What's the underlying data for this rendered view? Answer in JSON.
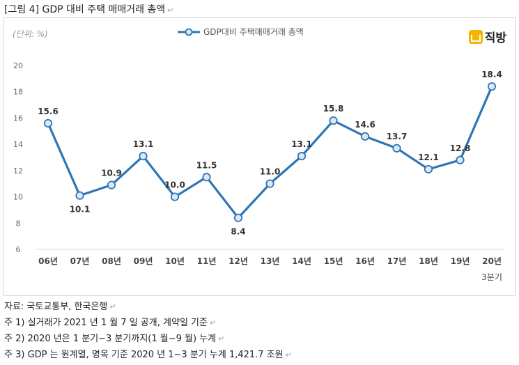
{
  "figure_title": "[그림 4] GDP 대비 주택 매매거래 총액",
  "return_mark": "↵",
  "unit_label": "(단위: %)",
  "logo_text": "직방",
  "chart_data": {
    "type": "line",
    "title": "",
    "xlabel": "",
    "ylabel": "",
    "ylim": [
      6,
      20
    ],
    "yticks": [
      6,
      8,
      10,
      12,
      14,
      16,
      18,
      20
    ],
    "grid": false,
    "legend_position": "top-center",
    "categories": [
      "06년",
      "07년",
      "08년",
      "09년",
      "10년",
      "11년",
      "12년",
      "13년",
      "14년",
      "15년",
      "16년",
      "17년",
      "18년",
      "19년",
      "20년"
    ],
    "last_category_sublabel": "3분기",
    "series": [
      {
        "name": "GDP대비 주택매매거래 총액",
        "color": "#2e75b6",
        "marker_fill": "#dce9f5",
        "values": [
          15.6,
          10.1,
          10.9,
          13.1,
          10.0,
          11.5,
          8.4,
          11.0,
          13.1,
          15.8,
          14.6,
          13.7,
          12.1,
          12.8,
          18.4
        ],
        "data_labels": [
          "15.6",
          "10.1",
          "10.9",
          "13.1",
          "10.0",
          "11.5",
          "8.4",
          "11.0",
          "13.1",
          "15.8",
          "14.6",
          "13.7",
          "12.1",
          "12.8",
          "18.4"
        ]
      }
    ]
  },
  "notes": [
    "자료: 국토교통부, 한국은행",
    "주 1) 실거래가 2021 년 1 월 7 일 공개, 계약일 기준",
    "주 2) 2020 년은 1 분기~3 분기까지(1 월~9 월) 누계",
    "주 3) GDP 는 원계열, 명목 기준 2020 년 1~3 분기 누계 1,421.7 조원"
  ]
}
